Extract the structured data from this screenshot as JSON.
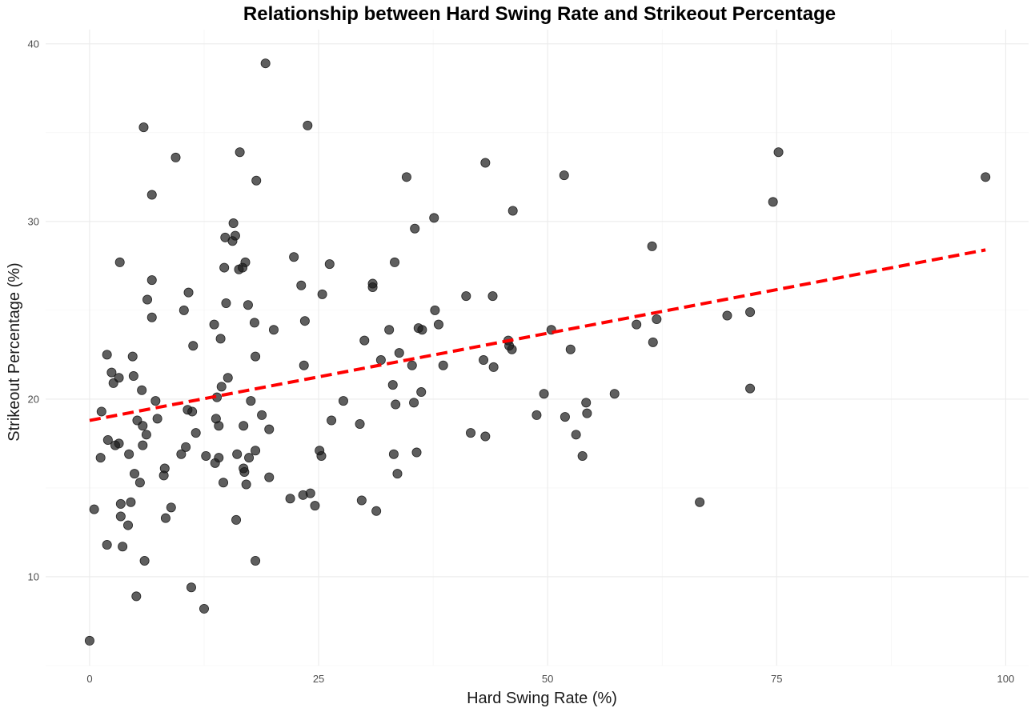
{
  "chart_data": {
    "type": "scatter",
    "title": "Relationship between Hard Swing Rate and Strikeout Percentage",
    "xlabel": "Hard Swing Rate (%)",
    "ylabel": "Strikeout Percentage (%)",
    "xlim": [
      -4.8,
      102.5
    ],
    "ylim": [
      5.0,
      40.8
    ],
    "x_ticks": [
      0,
      25,
      50,
      75,
      100
    ],
    "x_tick_labels": [
      "0",
      "25",
      "50",
      "75",
      "100"
    ],
    "y_ticks": [
      10,
      20,
      30,
      40
    ],
    "y_tick_labels": [
      "10",
      "20",
      "30",
      "40"
    ],
    "grid": true,
    "point_color": "#1a1a1a",
    "point_opacity": 0.7,
    "trend_color": "#ff0000",
    "trend_line": {
      "x": [
        0,
        97.8
      ],
      "y": [
        18.8,
        28.4
      ]
    },
    "points": [
      [
        0,
        6.4
      ],
      [
        0.5,
        13.8
      ],
      [
        1.2,
        16.7
      ],
      [
        1.3,
        19.3
      ],
      [
        1.9,
        11.8
      ],
      [
        1.9,
        22.5
      ],
      [
        2,
        17.7
      ],
      [
        2.4,
        21.5
      ],
      [
        2.6,
        20.9
      ],
      [
        2.8,
        17.4
      ],
      [
        3.2,
        21.2
      ],
      [
        3.2,
        17.5
      ],
      [
        3.3,
        27.7
      ],
      [
        3.4,
        14.1
      ],
      [
        3.4,
        13.4
      ],
      [
        3.6,
        11.7
      ],
      [
        4.2,
        12.9
      ],
      [
        4.3,
        16.9
      ],
      [
        4.5,
        14.2
      ],
      [
        4.7,
        22.4
      ],
      [
        4.8,
        21.3
      ],
      [
        4.9,
        15.8
      ],
      [
        5.1,
        8.9
      ],
      [
        5.2,
        18.8
      ],
      [
        5.5,
        15.3
      ],
      [
        5.7,
        20.5
      ],
      [
        5.8,
        18.5
      ],
      [
        5.8,
        17.4
      ],
      [
        5.9,
        35.3
      ],
      [
        6,
        10.9
      ],
      [
        6.2,
        18
      ],
      [
        6.3,
        25.6
      ],
      [
        6.8,
        31.5
      ],
      [
        6.8,
        26.7
      ],
      [
        6.8,
        24.6
      ],
      [
        7.2,
        19.9
      ],
      [
        7.4,
        18.9
      ],
      [
        8.1,
        15.7
      ],
      [
        8.2,
        16.1
      ],
      [
        8.3,
        13.3
      ],
      [
        8.9,
        13.9
      ],
      [
        9.4,
        33.6
      ],
      [
        10,
        16.9
      ],
      [
        10.3,
        25
      ],
      [
        10.5,
        17.3
      ],
      [
        10.7,
        19.4
      ],
      [
        10.8,
        26
      ],
      [
        11.1,
        9.4
      ],
      [
        11.2,
        19.3
      ],
      [
        11.3,
        23
      ],
      [
        11.6,
        18.1
      ],
      [
        12.5,
        8.2
      ],
      [
        12.7,
        16.8
      ],
      [
        13.6,
        24.2
      ],
      [
        13.7,
        16.4
      ],
      [
        13.8,
        18.9
      ],
      [
        13.9,
        20.1
      ],
      [
        14.1,
        18.5
      ],
      [
        14.1,
        16.7
      ],
      [
        14.3,
        23.4
      ],
      [
        14.4,
        20.7
      ],
      [
        14.6,
        15.3
      ],
      [
        14.7,
        27.4
      ],
      [
        14.8,
        29.1
      ],
      [
        14.9,
        25.4
      ],
      [
        15.1,
        21.2
      ],
      [
        15.6,
        28.9
      ],
      [
        15.7,
        29.9
      ],
      [
        15.9,
        29.2
      ],
      [
        16,
        13.2
      ],
      [
        16.1,
        16.9
      ],
      [
        16.3,
        27.3
      ],
      [
        16.4,
        33.9
      ],
      [
        16.7,
        27.4
      ],
      [
        16.8,
        16.1
      ],
      [
        16.8,
        18.5
      ],
      [
        16.9,
        15.9
      ],
      [
        17,
        27.7
      ],
      [
        17.1,
        15.2
      ],
      [
        17.3,
        25.3
      ],
      [
        17.4,
        16.7
      ],
      [
        17.6,
        19.9
      ],
      [
        18,
        24.3
      ],
      [
        18.1,
        22.4
      ],
      [
        18.1,
        17.1
      ],
      [
        18.1,
        10.9
      ],
      [
        18.2,
        32.3
      ],
      [
        18.8,
        19.1
      ],
      [
        19.2,
        38.9
      ],
      [
        19.6,
        18.3
      ],
      [
        19.6,
        15.6
      ],
      [
        20.1,
        23.9
      ],
      [
        21.9,
        14.4
      ],
      [
        22.3,
        28
      ],
      [
        23.1,
        26.4
      ],
      [
        23.3,
        14.6
      ],
      [
        23.4,
        21.9
      ],
      [
        23.5,
        24.4
      ],
      [
        23.8,
        35.4
      ],
      [
        24.1,
        14.7
      ],
      [
        24.6,
        14
      ],
      [
        25.1,
        17.1
      ],
      [
        25.3,
        16.8
      ],
      [
        25.4,
        25.9
      ],
      [
        26.2,
        27.6
      ],
      [
        26.4,
        18.8
      ],
      [
        27.7,
        19.9
      ],
      [
        29.5,
        18.6
      ],
      [
        29.7,
        14.3
      ],
      [
        30,
        23.3
      ],
      [
        30.9,
        26.5
      ],
      [
        30.9,
        26.3
      ],
      [
        31.3,
        13.7
      ],
      [
        31.8,
        22.2
      ],
      [
        32.7,
        23.9
      ],
      [
        33.1,
        20.8
      ],
      [
        33.2,
        16.9
      ],
      [
        33.3,
        27.7
      ],
      [
        33.4,
        19.7
      ],
      [
        33.6,
        15.8
      ],
      [
        33.8,
        22.6
      ],
      [
        34.6,
        32.5
      ],
      [
        35.2,
        21.9
      ],
      [
        35.4,
        19.8
      ],
      [
        35.5,
        29.6
      ],
      [
        35.7,
        17
      ],
      [
        35.9,
        24
      ],
      [
        36.2,
        20.4
      ],
      [
        36.3,
        23.9
      ],
      [
        37.6,
        30.2
      ],
      [
        37.7,
        25
      ],
      [
        38.1,
        24.2
      ],
      [
        38.6,
        21.9
      ],
      [
        41.1,
        25.8
      ],
      [
        41.6,
        18.1
      ],
      [
        43,
        22.2
      ],
      [
        43.2,
        33.3
      ],
      [
        43.2,
        17.9
      ],
      [
        44,
        25.8
      ],
      [
        44.1,
        21.8
      ],
      [
        45.7,
        23.3
      ],
      [
        45.8,
        23
      ],
      [
        46.1,
        22.8
      ],
      [
        46.2,
        30.6
      ],
      [
        48.8,
        19.1
      ],
      [
        49.6,
        20.3
      ],
      [
        50.4,
        23.9
      ],
      [
        51.8,
        32.6
      ],
      [
        51.9,
        19
      ],
      [
        52.5,
        22.8
      ],
      [
        53.1,
        18
      ],
      [
        53.8,
        16.8
      ],
      [
        54.2,
        19.8
      ],
      [
        54.3,
        19.2
      ],
      [
        57.3,
        20.3
      ],
      [
        59.7,
        24.2
      ],
      [
        61.4,
        28.6
      ],
      [
        61.5,
        23.2
      ],
      [
        61.9,
        24.5
      ],
      [
        66.6,
        14.2
      ],
      [
        69.6,
        24.7
      ],
      [
        72.1,
        24.9
      ],
      [
        72.1,
        20.6
      ],
      [
        74.6,
        31.1
      ],
      [
        75.2,
        33.9
      ],
      [
        97.8,
        32.5
      ]
    ]
  }
}
